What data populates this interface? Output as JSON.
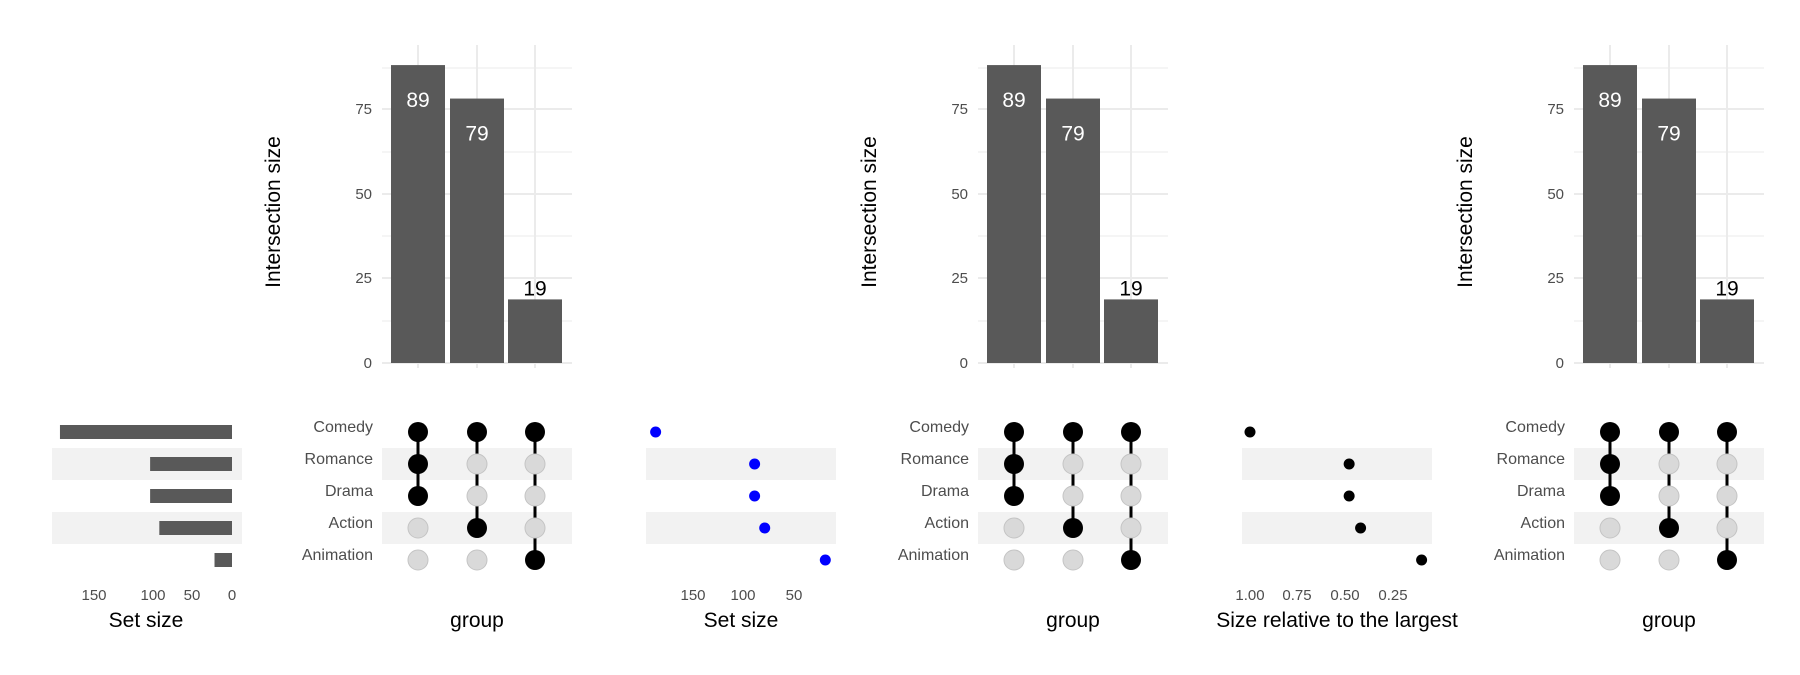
{
  "panels": {
    "top_bars": {
      "ylabel": "Intersection size",
      "yticks": [
        "0",
        "25",
        "50",
        "75"
      ]
    },
    "matrix": {
      "xlabel": "group"
    },
    "set_size_bars": {
      "xlabel": "Set size",
      "xticks": [
        "150",
        "100",
        "50",
        "0"
      ]
    },
    "set_size_dots": {
      "xlabel": "Set size",
      "xticks": [
        "150",
        "100",
        "50"
      ]
    },
    "relative_dots": {
      "xlabel": "Size relative to the largest",
      "xticks": [
        "1.00",
        "0.75",
        "0.50",
        "0.25"
      ]
    }
  },
  "chart_data": {
    "type": "bar",
    "title": "",
    "intersections": {
      "values": [
        89,
        79,
        19
      ],
      "labels": [
        "89",
        "79",
        "19"
      ],
      "ylabel": "Intersection size",
      "ylim": [
        0,
        95
      ],
      "bar_color": "#595959",
      "label_colors": [
        "#ffffff",
        "#ffffff",
        "#000000"
      ],
      "members": [
        [
          "Comedy",
          "Romance",
          "Drama"
        ],
        [
          "Comedy",
          "Action"
        ],
        [
          "Comedy",
          "Animation"
        ]
      ]
    },
    "sets": [
      "Comedy",
      "Romance",
      "Drama",
      "Action",
      "Animation"
    ],
    "set_sizes": [
      187,
      89,
      89,
      79,
      19
    ],
    "relative_sizes": [
      1.0,
      0.48,
      0.48,
      0.42,
      0.1
    ],
    "set_size_bar_xlim": [
      0,
      195
    ],
    "set_size_dot_xlim": [
      30,
      195
    ],
    "relative_xlim": [
      0.15,
      1.05
    ],
    "colors": {
      "bar": "#595959",
      "dot_active": "#000000",
      "dot_inactive": "#d9d9d9",
      "dot_blue": "#0000ff",
      "stripe": "#f2f2f2",
      "grid": "#ebebeb"
    },
    "grid": true
  }
}
